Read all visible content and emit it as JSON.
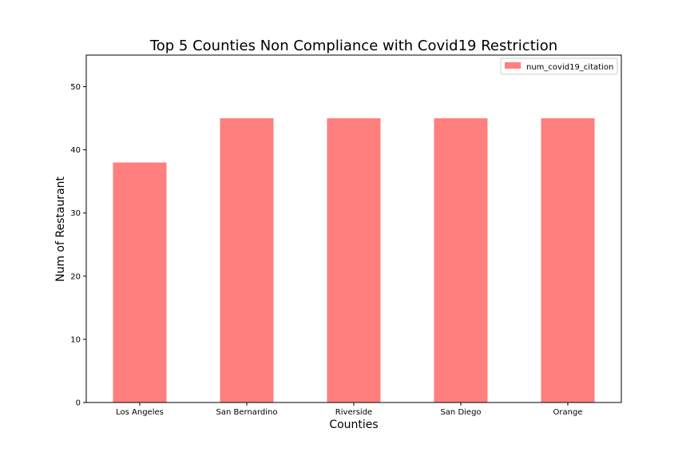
{
  "chart_data": {
    "type": "bar",
    "title": "Top 5 Counties Non Compliance with Covid19 Restriction",
    "xlabel": "Counties",
    "ylabel": "Num of Restaurant",
    "categories": [
      "Los Angeles",
      "San Bernardino",
      "Riverside",
      "San Diego",
      "Orange"
    ],
    "series": [
      {
        "name": "num_covid19_citation",
        "values": [
          38,
          45,
          45,
          45,
          45
        ],
        "color": "#ff7f7f"
      }
    ],
    "ylim": [
      0,
      55
    ],
    "yticks": [
      0,
      10,
      20,
      30,
      40,
      50
    ],
    "grid": false,
    "legend_position": "top-right"
  }
}
